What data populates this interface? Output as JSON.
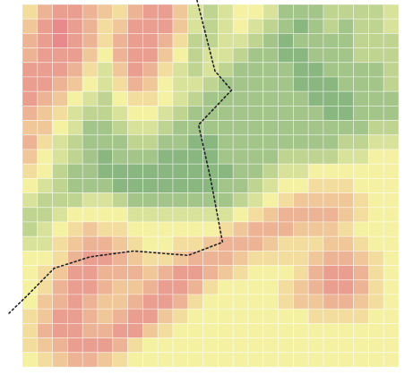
{
  "chart_data": {
    "type": "heatmap",
    "tick_labels": false,
    "grid": true,
    "xlim": [
      0,
      25
    ],
    "ylim": [
      0,
      25
    ],
    "color_range": [
      0,
      10
    ],
    "cells": [
      [
        4,
        2,
        1,
        1,
        2,
        3,
        4,
        2,
        1,
        1,
        3,
        6,
        7,
        6,
        5,
        5,
        6,
        8,
        8,
        8,
        7,
        7,
        7,
        7,
        6
      ],
      [
        3,
        1,
        0,
        1,
        2,
        4,
        3,
        1,
        1,
        1,
        3,
        6,
        7,
        6,
        5,
        6,
        7,
        8,
        9,
        8,
        7,
        8,
        7,
        7,
        6
      ],
      [
        2,
        1,
        0,
        1,
        2,
        4,
        2,
        1,
        1,
        2,
        4,
        7,
        7,
        6,
        6,
        7,
        8,
        9,
        8,
        8,
        8,
        8,
        7,
        7,
        7
      ],
      [
        2,
        1,
        1,
        1,
        3,
        5,
        2,
        1,
        1,
        3,
        5,
        7,
        6,
        6,
        7,
        8,
        8,
        9,
        9,
        8,
        8,
        8,
        7,
        7,
        7
      ],
      [
        1,
        1,
        1,
        2,
        4,
        6,
        3,
        1,
        2,
        4,
        6,
        7,
        6,
        7,
        8,
        8,
        8,
        8,
        9,
        9,
        8,
        8,
        8,
        8,
        7
      ],
      [
        1,
        1,
        2,
        3,
        5,
        6,
        4,
        2,
        3,
        5,
        6,
        6,
        7,
        8,
        8,
        8,
        8,
        8,
        9,
        9,
        9,
        8,
        8,
        8,
        7
      ],
      [
        1,
        2,
        3,
        5,
        6,
        7,
        5,
        4,
        4,
        5,
        6,
        7,
        8,
        8,
        8,
        8,
        8,
        8,
        8,
        9,
        9,
        9,
        8,
        8,
        8
      ],
      [
        2,
        3,
        4,
        6,
        7,
        7,
        6,
        5,
        5,
        6,
        7,
        8,
        8,
        8,
        8,
        8,
        8,
        8,
        8,
        8,
        9,
        9,
        8,
        8,
        8
      ],
      [
        3,
        3,
        5,
        6,
        8,
        8,
        7,
        6,
        6,
        7,
        8,
        8,
        8,
        8,
        8,
        8,
        8,
        8,
        8,
        8,
        8,
        8,
        8,
        7,
        7
      ],
      [
        2,
        4,
        6,
        7,
        8,
        8,
        8,
        7,
        7,
        8,
        8,
        9,
        9,
        8,
        8,
        8,
        8,
        8,
        8,
        8,
        8,
        7,
        7,
        6,
        6
      ],
      [
        3,
        5,
        6,
        7,
        8,
        9,
        8,
        8,
        8,
        9,
        9,
        9,
        9,
        8,
        8,
        8,
        8,
        7,
        7,
        7,
        7,
        6,
        6,
        5,
        5
      ],
      [
        4,
        5,
        7,
        8,
        8,
        9,
        9,
        9,
        9,
        9,
        9,
        9,
        9,
        9,
        8,
        8,
        7,
        6,
        6,
        5,
        5,
        5,
        5,
        5,
        5
      ],
      [
        5,
        6,
        7,
        8,
        8,
        8,
        9,
        9,
        9,
        9,
        9,
        9,
        9,
        8,
        8,
        7,
        6,
        5,
        5,
        4,
        4,
        4,
        5,
        5,
        5
      ],
      [
        6,
        7,
        7,
        7,
        6,
        6,
        7,
        8,
        8,
        8,
        8,
        8,
        8,
        8,
        7,
        6,
        5,
        4,
        3,
        3,
        3,
        3,
        4,
        5,
        5
      ],
      [
        7,
        7,
        6,
        5,
        5,
        5,
        5,
        6,
        6,
        6,
        6,
        6,
        6,
        6,
        5,
        4,
        3,
        2,
        2,
        2,
        2,
        3,
        4,
        5,
        5
      ],
      [
        7,
        6,
        5,
        4,
        3,
        4,
        4,
        5,
        5,
        5,
        5,
        5,
        5,
        4,
        3,
        2,
        2,
        2,
        3,
        3,
        3,
        4,
        5,
        5,
        5
      ],
      [
        6,
        6,
        4,
        3,
        2,
        2,
        3,
        4,
        5,
        5,
        4,
        4,
        3,
        2,
        2,
        2,
        3,
        4,
        4,
        4,
        3,
        3,
        4,
        5,
        5
      ],
      [
        5,
        5,
        4,
        2,
        1,
        1,
        2,
        3,
        4,
        4,
        3,
        2,
        2,
        2,
        3,
        4,
        4,
        4,
        4,
        3,
        2,
        2,
        3,
        4,
        5
      ],
      [
        5,
        4,
        3,
        1,
        1,
        2,
        2,
        2,
        3,
        2,
        1,
        1,
        2,
        3,
        4,
        5,
        5,
        5,
        4,
        2,
        1,
        1,
        2,
        4,
        5
      ],
      [
        5,
        4,
        2,
        1,
        1,
        2,
        3,
        3,
        2,
        1,
        1,
        2,
        4,
        5,
        5,
        5,
        5,
        4,
        3,
        2,
        1,
        1,
        2,
        4,
        5
      ],
      [
        5,
        3,
        2,
        1,
        2,
        3,
        3,
        2,
        1,
        1,
        2,
        4,
        5,
        5,
        5,
        5,
        5,
        4,
        3,
        3,
        2,
        2,
        3,
        4,
        5
      ],
      [
        4,
        3,
        1,
        1,
        2,
        3,
        2,
        1,
        1,
        3,
        4,
        5,
        5,
        5,
        5,
        5,
        5,
        5,
        5,
        4,
        4,
        4,
        4,
        5,
        5
      ],
      [
        4,
        2,
        1,
        1,
        2,
        2,
        1,
        1,
        3,
        4,
        5,
        5,
        5,
        5,
        5,
        5,
        5,
        5,
        5,
        5,
        5,
        5,
        5,
        5,
        5
      ],
      [
        4,
        3,
        2,
        1,
        1,
        1,
        2,
        4,
        5,
        5,
        5,
        5,
        5,
        5,
        5,
        5,
        5,
        5,
        5,
        5,
        5,
        5,
        5,
        5,
        5
      ],
      [
        5,
        4,
        3,
        2,
        2,
        3,
        4,
        5,
        5,
        5,
        5,
        5,
        5,
        5,
        5,
        5,
        5,
        5,
        5,
        5,
        5,
        5,
        5,
        5,
        5
      ]
    ],
    "boundary": {
      "x": [
        11.6,
        12.8,
        13.9,
        11.7,
        12.5,
        13.3,
        11.0,
        7.4,
        4.5,
        2.1,
        0.3,
        -1.0
      ],
      "y": [
        -0.3,
        4.6,
        5.9,
        8.3,
        12.0,
        16.4,
        17.3,
        17.0,
        17.4,
        18.2,
        20.1,
        21.4
      ]
    }
  }
}
